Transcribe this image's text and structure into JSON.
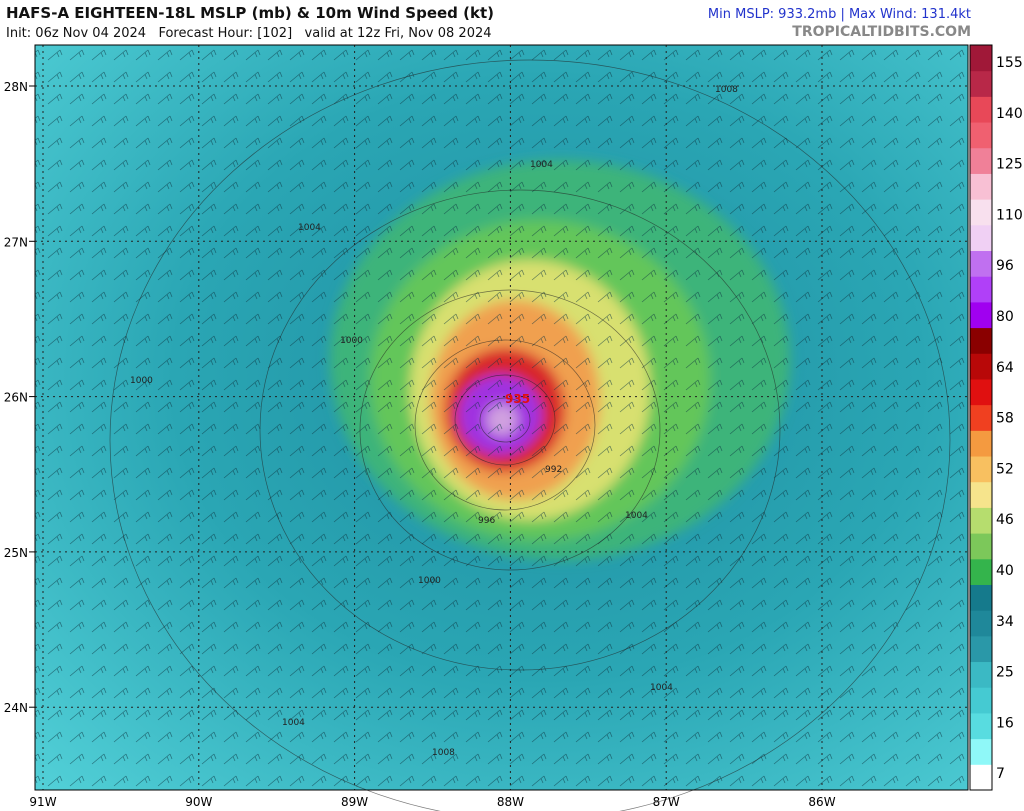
{
  "header": {
    "title": "HAFS-A EIGHTEEN-18L MSLP (mb) & 10m Wind Speed (kt)",
    "subtitle": "Init: 06z Nov 04 2024   Forecast Hour: [102]   valid at 12z Fri, Nov 08 2024",
    "stats": "Min MSLP: 933.2mb | Max Wind: 131.4kt",
    "site": "TROPICALTIDBITS.COM"
  },
  "map": {
    "lat_labels": [
      "28N",
      "27N",
      "26N",
      "25N",
      "24N"
    ],
    "lon_labels": [
      "91W",
      "90W",
      "89W",
      "88W",
      "87W",
      "86W"
    ],
    "contour_labels": [
      "1008",
      "1004",
      "1004",
      "1000",
      "1000",
      "996",
      "992",
      "1000",
      "1004",
      "1004",
      "1004",
      "1008",
      "935"
    ]
  },
  "colorbar": {
    "labels": [
      "155",
      "140",
      "125",
      "110",
      "96",
      "80",
      "64",
      "58",
      "52",
      "46",
      "40",
      "34",
      "25",
      "16",
      "7"
    ]
  }
}
